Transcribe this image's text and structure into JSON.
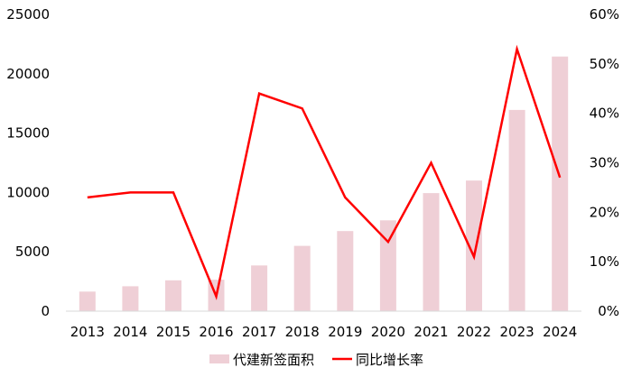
{
  "chart_data": {
    "type": "bar",
    "categories": [
      "2013",
      "2014",
      "2015",
      "2016",
      "2017",
      "2018",
      "2019",
      "2020",
      "2021",
      "2022",
      "2023",
      "2024"
    ],
    "series": [
      {
        "name": "代建新签面积",
        "type": "bar",
        "axis": "left",
        "color": "#efcfd6",
        "values": [
          1650,
          2100,
          2600,
          2650,
          3850,
          5500,
          6750,
          7650,
          9950,
          11000,
          16950,
          21450
        ]
      },
      {
        "name": "同比增长率",
        "type": "line",
        "axis": "right",
        "color": "#ff0000",
        "values": [
          0.23,
          0.24,
          0.24,
          0.03,
          0.44,
          0.41,
          0.23,
          0.14,
          0.3,
          0.11,
          0.53,
          0.27
        ]
      }
    ],
    "y_left": {
      "ylim": [
        0,
        25000
      ],
      "ticks": [
        "0",
        "5000",
        "10000",
        "15000",
        "20000",
        "25000"
      ]
    },
    "y_right": {
      "ylim": [
        0,
        0.6
      ],
      "ticks": [
        "0%",
        "10%",
        "20%",
        "30%",
        "40%",
        "50%",
        "60%"
      ]
    },
    "legend_position": "bottom",
    "grid": false
  }
}
